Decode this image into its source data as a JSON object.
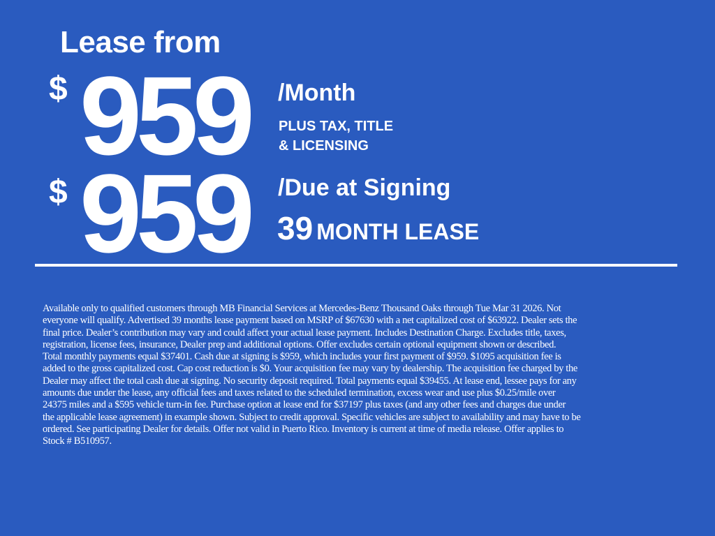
{
  "headline": "Lease from",
  "monthly": {
    "currency": "$",
    "amount": "959",
    "unit": "/Month",
    "note_line1": "PLUS TAX, TITLE",
    "note_line2": "& LICENSING"
  },
  "due": {
    "currency": "$",
    "amount": "959",
    "unit": "/Due at Signing"
  },
  "term": {
    "months": "39",
    "label": "MONTH LEASE"
  },
  "colors": {
    "background": "#2a5bbf",
    "text": "#ffffff"
  },
  "disclaimer_lines": [
    "Available only to qualified customers through MB Financial Services at Mercedes-Benz Thousand Oaks through Tue Mar 31 2026. Not",
    "everyone will qualify. Advertised 39 months lease payment based on MSRP of $67630 with a net capitalized cost of $63922. Dealer sets the",
    "final price. Dealer’s contribution may vary and could affect your actual lease payment. Includes Destination Charge. Excludes title, taxes,",
    "registration, license fees, insurance, Dealer prep and additional options. Offer excludes certain optional equipment shown or described.",
    "Total monthly payments equal $37401. Cash due at signing is $959, which includes your first payment of $959. $1095 acquisition fee is",
    "added to the gross capitalized cost. Cap cost reduction is $0. Your acquisition fee may vary by dealership. The acquisition fee charged by the",
    "Dealer may affect the total cash due at signing. No security deposit required. Total payments equal $39455. At lease end, lessee pays for any",
    "amounts due under the lease, any official fees and taxes related to the scheduled termination, excess wear and use plus $0.25/mile over",
    "24375 miles and a $595 vehicle turn-in fee. Purchase option at lease end for $37197 plus taxes (and any other fees and charges due under",
    "the applicable lease agreement) in example shown. Subject to credit approval. Specific vehicles are subject to availability and may have to be",
    "ordered. See participating Dealer for details. Offer not valid in Puerto Rico. Inventory is current at time of media release. Offer applies to",
    "Stock # B510957."
  ]
}
